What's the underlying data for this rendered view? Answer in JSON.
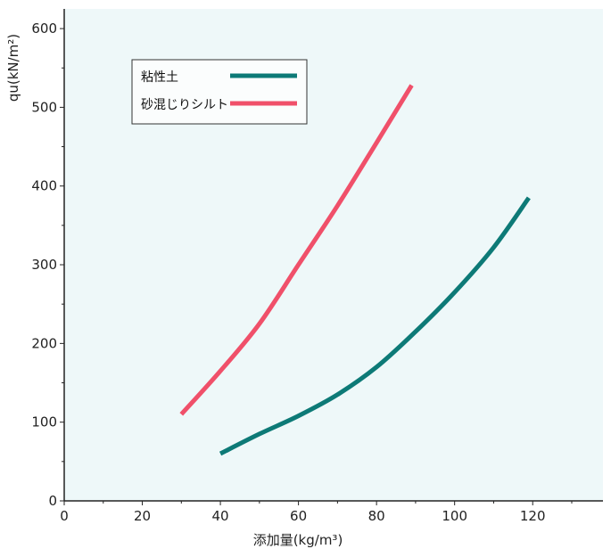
{
  "chart_data": {
    "type": "line",
    "title": "",
    "xlabel": "添加量(kg/m³)",
    "ylabel": "qu(kN/m²)",
    "xlim": [
      0,
      138
    ],
    "ylim": [
      0,
      625
    ],
    "x_ticks": [
      0,
      20,
      40,
      60,
      80,
      100,
      120
    ],
    "y_ticks": [
      0,
      100,
      200,
      300,
      400,
      500,
      600
    ],
    "grid": false,
    "legend_position": "top-left",
    "background_color": "#eef8f9",
    "series": [
      {
        "name": "粘性土",
        "color": "#0d7a77",
        "x": [
          40,
          50,
          60,
          70,
          80,
          90,
          100,
          110,
          119
        ],
        "y": [
          60,
          85,
          108,
          135,
          170,
          215,
          265,
          322,
          385
        ]
      },
      {
        "name": "砂混じりシルト",
        "color": "#f0506a",
        "x": [
          30,
          40,
          50,
          60,
          70,
          80,
          89
        ],
        "y": [
          110,
          165,
          225,
          300,
          375,
          455,
          528
        ]
      }
    ]
  }
}
